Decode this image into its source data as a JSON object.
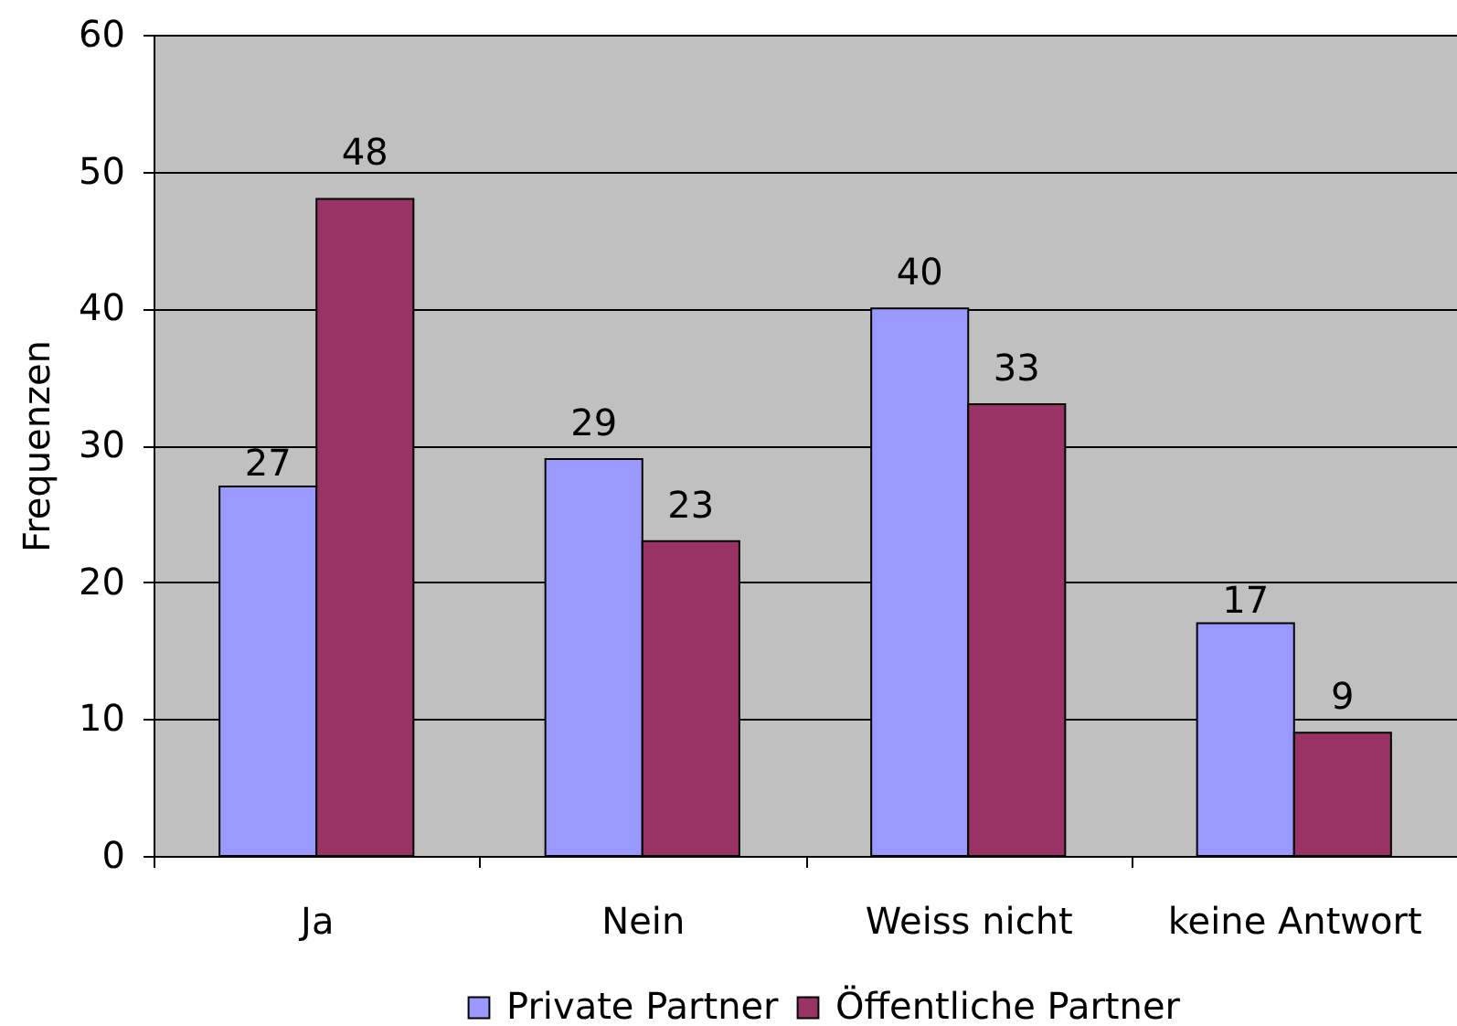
{
  "chart_data": {
    "type": "bar",
    "categories": [
      "Ja",
      "Nein",
      "Weiss nicht",
      "keine Antwort"
    ],
    "series": [
      {
        "name": "Private Partner",
        "color": "#9999ff",
        "values": [
          27,
          29,
          40,
          17
        ]
      },
      {
        "name": "Öffentliche Partner",
        "color": "#993366",
        "values": [
          48,
          23,
          33,
          9
        ]
      }
    ],
    "ylabel": "Frequenzen",
    "ylim": [
      0,
      60
    ],
    "yticks": [
      0,
      10,
      20,
      30,
      40,
      50,
      60
    ],
    "grid": "y",
    "legend": "bottom",
    "data_labels": true
  }
}
